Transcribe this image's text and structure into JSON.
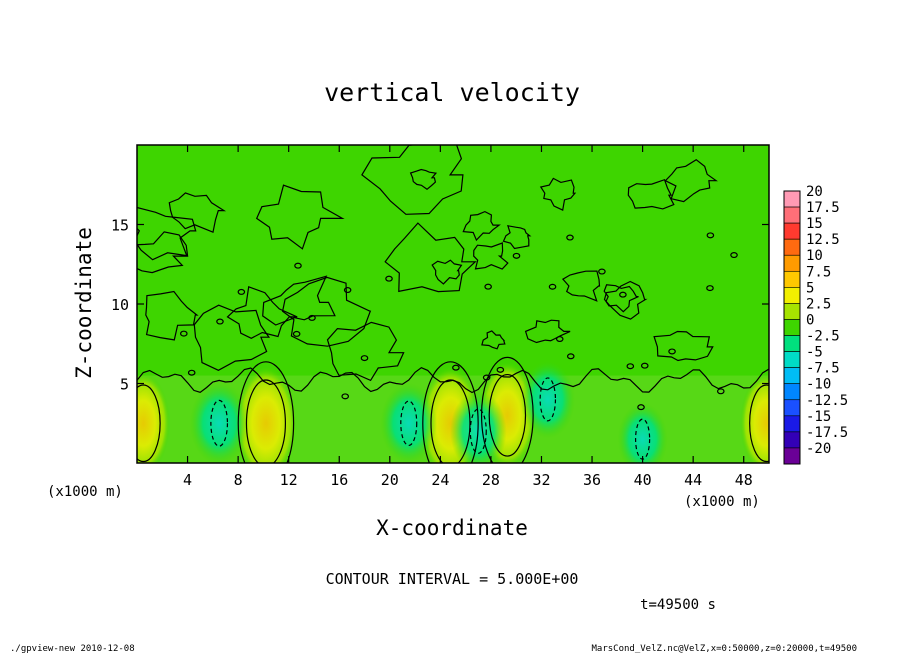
{
  "chart_data": {
    "type": "heatmap",
    "title": "vertical velocity",
    "xlabel": "X-coordinate",
    "ylabel": "Z-coordinate",
    "x_unit": "(x1000 m)",
    "y_unit": "(x1000 m)",
    "xlim": [
      0,
      50
    ],
    "ylim": [
      0,
      20
    ],
    "x_ticks": [
      "4",
      "8",
      "12",
      "16",
      "20",
      "24",
      "28",
      "32",
      "36",
      "40",
      "44",
      "48"
    ],
    "y_ticks": [
      "5",
      "10",
      "15"
    ],
    "colorbar_labels": [
      "20",
      "17.5",
      "15",
      "12.5",
      "10",
      "7.5",
      "5",
      "2.5",
      "0",
      "-2.5",
      "-5",
      "-7.5",
      "-10",
      "-12.5",
      "-15",
      "-17.5",
      "-20"
    ],
    "colorbar_colors": [
      "#ff9ab4",
      "#ff6f78",
      "#ff3a2f",
      "#ff6a10",
      "#ff9b00",
      "#ffc800",
      "#f2ef00",
      "#a6e400",
      "#3ed500",
      "#00e07e",
      "#00dcc6",
      "#00bdf5",
      "#0086ff",
      "#1a50ff",
      "#1a1ae6",
      "#3300b6",
      "#6a0096"
    ],
    "background_level": 0,
    "features": [
      {
        "kind": "updraft",
        "x": 10.2,
        "z": 2.5,
        "value": 7.5
      },
      {
        "kind": "updraft",
        "x": 24.8,
        "z": 2.5,
        "value": 7.5
      },
      {
        "kind": "updraft",
        "x": 29.3,
        "z": 3.0,
        "value": 6.5
      },
      {
        "kind": "updraft",
        "x": 0.5,
        "z": 2.5,
        "value": 5.5
      },
      {
        "kind": "updraft",
        "x": 49.8,
        "z": 2.5,
        "value": 5.5
      },
      {
        "kind": "downdraft",
        "x": 6.5,
        "z": 2.5,
        "value": -6
      },
      {
        "kind": "downdraft",
        "x": 21.5,
        "z": 2.5,
        "value": -5.5
      },
      {
        "kind": "downdraft",
        "x": 27.0,
        "z": 2.0,
        "value": -5.5
      },
      {
        "kind": "downdraft",
        "x": 32.5,
        "z": 4.0,
        "value": -5
      },
      {
        "kind": "downdraft",
        "x": 40.0,
        "z": 1.5,
        "value": -4
      }
    ],
    "contour_interval": 5.0
  },
  "annotations": {
    "contour_interval_text": "CONTOUR INTERVAL = 5.000E+00",
    "time_text": "t=49500 s",
    "footer_left": "./gpview-new 2010-12-08",
    "footer_right": "MarsCond_VelZ.nc@VelZ,x=0:50000,z=0:20000,t=49500"
  }
}
